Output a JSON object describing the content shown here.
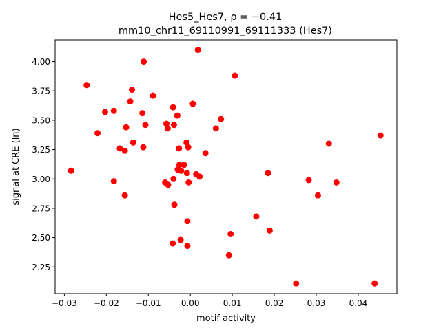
{
  "chart_data": {
    "type": "scatter",
    "title_line1": "Hes5_Hes7, ρ = −0.41",
    "title_line2": "mm10_chr11_69110991_69111333 (Hes7)",
    "xlabel": "motif activity",
    "ylabel": "signal at CRE (ln)",
    "xlim": [
      -0.0322,
      0.0492
    ],
    "ylim": [
      2.023,
      4.185
    ],
    "xticks": [
      -0.03,
      -0.02,
      -0.01,
      0.0,
      0.01,
      0.02,
      0.03,
      0.04
    ],
    "xtick_labels": [
      "−0.03",
      "−0.02",
      "−0.01",
      "0.00",
      "0.01",
      "0.02",
      "0.03",
      "0.04"
    ],
    "yticks": [
      2.25,
      2.5,
      2.75,
      3.0,
      3.25,
      3.5,
      3.75,
      4.0
    ],
    "ytick_labels": [
      "2.25",
      "2.50",
      "2.75",
      "3.00",
      "3.25",
      "3.50",
      "3.75",
      "4.00"
    ],
    "grid": false,
    "marker_color": "#ff0000",
    "points": [
      [
        -0.0284,
        3.07
      ],
      [
        -0.0247,
        3.8
      ],
      [
        -0.0221,
        3.39
      ],
      [
        -0.0203,
        3.57
      ],
      [
        -0.0182,
        3.58
      ],
      [
        -0.0182,
        2.98
      ],
      [
        -0.0168,
        3.26
      ],
      [
        -0.0156,
        3.24
      ],
      [
        -0.0156,
        2.86
      ],
      [
        -0.0153,
        3.44
      ],
      [
        -0.0143,
        3.66
      ],
      [
        -0.0139,
        3.76
      ],
      [
        -0.0136,
        3.31
      ],
      [
        -0.0114,
        3.56
      ],
      [
        -0.0112,
        3.27
      ],
      [
        -0.0111,
        4.0
      ],
      [
        -0.0107,
        3.46
      ],
      [
        -0.0089,
        3.71
      ],
      [
        -0.006,
        2.97
      ],
      [
        -0.0057,
        3.47
      ],
      [
        -0.0054,
        3.43
      ],
      [
        -0.0053,
        2.95
      ],
      [
        -0.0042,
        2.45
      ],
      [
        -0.0041,
        3.61
      ],
      [
        -0.004,
        3.0
      ],
      [
        -0.0039,
        3.46
      ],
      [
        -0.0038,
        2.78
      ],
      [
        -0.0031,
        3.54
      ],
      [
        -0.003,
        3.08
      ],
      [
        -0.0027,
        3.26
      ],
      [
        -0.0026,
        3.12
      ],
      [
        -0.0023,
        2.48
      ],
      [
        -0.0022,
        3.07
      ],
      [
        -0.0015,
        3.12
      ],
      [
        -0.0009,
        3.31
      ],
      [
        -0.0008,
        3.05
      ],
      [
        -0.0007,
        2.64
      ],
      [
        -0.0007,
        2.43
      ],
      [
        -0.0005,
        3.27
      ],
      [
        -0.0004,
        2.97
      ],
      [
        0.0006,
        3.64
      ],
      [
        0.0014,
        3.04
      ],
      [
        0.0018,
        4.1
      ],
      [
        0.0022,
        3.02
      ],
      [
        0.0036,
        3.22
      ],
      [
        0.0061,
        3.43
      ],
      [
        0.0073,
        3.51
      ],
      [
        0.0092,
        2.35
      ],
      [
        0.0096,
        2.53
      ],
      [
        0.0106,
        3.88
      ],
      [
        0.0157,
        2.68
      ],
      [
        0.0185,
        3.05
      ],
      [
        0.0189,
        2.56
      ],
      [
        0.0252,
        2.11
      ],
      [
        0.0282,
        2.99
      ],
      [
        0.0304,
        2.86
      ],
      [
        0.033,
        3.3
      ],
      [
        0.0348,
        2.97
      ],
      [
        0.0439,
        2.11
      ],
      [
        0.0453,
        3.37
      ]
    ]
  }
}
